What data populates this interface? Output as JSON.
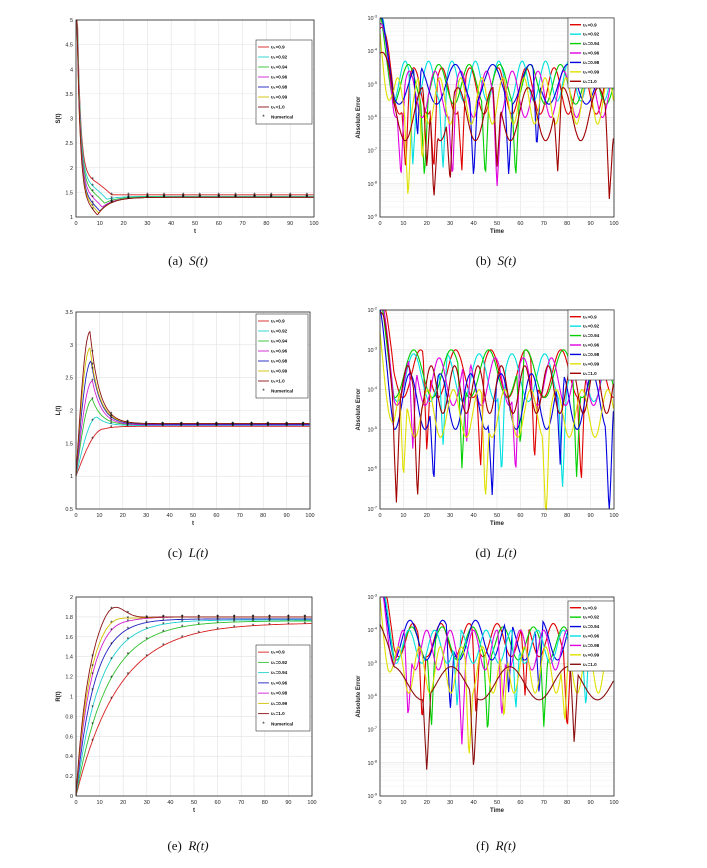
{
  "captions": [
    {
      "tag": "(a)",
      "sym": "S",
      "arg": "(t)"
    },
    {
      "tag": "(b)",
      "sym": "S",
      "arg": "(t)"
    },
    {
      "tag": "(c)",
      "sym": "L",
      "arg": "(t)"
    },
    {
      "tag": "(d)",
      "sym": "L",
      "arg": "(t)"
    },
    {
      "tag": "(e)",
      "sym": "R",
      "arg": "(t)"
    },
    {
      "tag": "(f)",
      "sym": "R",
      "arg": "(t)"
    }
  ],
  "chart_data": [
    {
      "id": "a",
      "type": "line",
      "xlabel": "t",
      "ylabel": "S(t)",
      "xlim": [
        0,
        100
      ],
      "ylim": [
        1,
        5
      ],
      "xticks": [
        0,
        10,
        20,
        30,
        40,
        50,
        60,
        70,
        80,
        90,
        100
      ],
      "yticks": [
        1,
        1.5,
        2,
        2.5,
        3,
        3.5,
        4,
        4.5,
        5
      ],
      "grid": true,
      "legend_position": "top-right",
      "numerical_markers": true,
      "series": [
        {
          "name": "υ₁=0.9",
          "color": "#d62020",
          "y0": 5,
          "settle": 1.45,
          "min": 1.45,
          "tmin": 15,
          "early": 1.9
        },
        {
          "name": "υ₁=0.92",
          "color": "#20d0d0",
          "y0": 5,
          "settle": 1.42,
          "min": 1.36,
          "tmin": 13,
          "early": 1.8
        },
        {
          "name": "υ₁=0.94",
          "color": "#30c030",
          "y0": 5,
          "settle": 1.41,
          "min": 1.28,
          "tmin": 12,
          "early": 1.7
        },
        {
          "name": "υ₁=0.96",
          "color": "#d020d0",
          "y0": 5,
          "settle": 1.4,
          "min": 1.2,
          "tmin": 11,
          "early": 1.6
        },
        {
          "name": "υ₁=0.98",
          "color": "#2020c0",
          "y0": 5,
          "settle": 1.4,
          "min": 1.12,
          "tmin": 10,
          "early": 1.5
        },
        {
          "name": "υ₁=0.99",
          "color": "#d0c000",
          "y0": 5,
          "settle": 1.4,
          "min": 1.08,
          "tmin": 9.5,
          "early": 1.45
        },
        {
          "name": "υ₁=1.0",
          "color": "#8b1010",
          "y0": 5,
          "settle": 1.4,
          "min": 1.04,
          "tmin": 9,
          "early": 1.4
        }
      ],
      "numerical_label": "Numerical",
      "numerical_t": [
        7,
        15,
        22,
        30,
        37,
        45,
        52,
        60,
        67,
        75,
        82,
        90,
        97
      ]
    },
    {
      "id": "c",
      "type": "line",
      "xlabel": "t",
      "ylabel": "L(t)",
      "xlim": [
        0,
        100
      ],
      "ylim": [
        0.5,
        3.5
      ],
      "xticks": [
        0,
        10,
        20,
        30,
        40,
        50,
        60,
        70,
        80,
        90,
        100
      ],
      "yticks": [
        0.5,
        1,
        1.5,
        2,
        2.5,
        3,
        3.5
      ],
      "grid": true,
      "legend_position": "top-right",
      "numerical_markers": true,
      "series": [
        {
          "name": "υ₁=0.9",
          "color": "#d62020",
          "y0": 1,
          "peak": 1.72,
          "tpeak": 12,
          "settle": 1.76
        },
        {
          "name": "υ₁=0.92",
          "color": "#20d0d0",
          "y0": 1,
          "peak": 1.9,
          "tpeak": 9,
          "settle": 1.77
        },
        {
          "name": "υ₁=0.94",
          "color": "#30c030",
          "y0": 1,
          "peak": 2.17,
          "tpeak": 7,
          "settle": 1.78
        },
        {
          "name": "υ₁=0.96",
          "color": "#d020d0",
          "y0": 1,
          "peak": 2.45,
          "tpeak": 7,
          "settle": 1.78
        },
        {
          "name": "υ₁=0.98",
          "color": "#2020c0",
          "y0": 1,
          "peak": 2.75,
          "tpeak": 6.5,
          "settle": 1.79
        },
        {
          "name": "υ₁=0.99",
          "color": "#d0c000",
          "y0": 1,
          "peak": 2.95,
          "tpeak": 6,
          "settle": 1.8
        },
        {
          "name": "υ₁=1.0",
          "color": "#8b1010",
          "y0": 1,
          "peak": 3.2,
          "tpeak": 6,
          "settle": 1.8
        }
      ],
      "numerical_label": "Numerical",
      "numerical_t": [
        7,
        15,
        22,
        30,
        37,
        45,
        52,
        60,
        67,
        75,
        82,
        90,
        97
      ]
    },
    {
      "id": "e",
      "type": "line",
      "xlabel": "t",
      "ylabel": "R(t)",
      "xlim": [
        0,
        100
      ],
      "ylim": [
        0,
        2
      ],
      "xticks": [
        0,
        10,
        20,
        30,
        40,
        50,
        60,
        70,
        80,
        90,
        100
      ],
      "yticks": [
        0,
        0.2,
        0.4,
        0.6,
        0.8,
        1,
        1.2,
        1.4,
        1.6,
        1.8,
        2
      ],
      "grid": true,
      "legend_position": "center-right",
      "numerical_markers": true,
      "series": [
        {
          "name": "υ₁=0.9",
          "color": "#d62020",
          "final": 1.74,
          "rate": 0.055,
          "peak": 0
        },
        {
          "name": "υ₁=0.92",
          "color": "#30c030",
          "final": 1.76,
          "rate": 0.075,
          "peak": 0
        },
        {
          "name": "υ₁=0.94",
          "color": "#20d0d0",
          "final": 1.77,
          "rate": 0.1,
          "peak": 0
        },
        {
          "name": "υ₁=0.96",
          "color": "#2020c0",
          "final": 1.78,
          "rate": 0.13,
          "peak": 0
        },
        {
          "name": "υ₁=0.98",
          "color": "#d020d0",
          "final": 1.8,
          "rate": 0.16,
          "peak": 0.03
        },
        {
          "name": "υ₁=0.99",
          "color": "#d0c000",
          "final": 1.8,
          "rate": 0.18,
          "peak": 0.06
        },
        {
          "name": "υ₁=1.0",
          "color": "#8b1010",
          "final": 1.8,
          "rate": 0.2,
          "peak": 0.17
        }
      ],
      "numerical_label": "Numerical",
      "numerical_t": [
        7,
        15,
        22,
        30,
        37,
        45,
        52,
        60,
        67,
        75,
        82,
        90,
        97
      ]
    },
    {
      "id": "b",
      "type": "line",
      "xlabel": "Time",
      "ylabel": "Absolute Error",
      "xlim": [
        0,
        100
      ],
      "yscale": "log",
      "ylog": [
        -9,
        -3
      ],
      "xticks": [
        0,
        10,
        20,
        30,
        40,
        50,
        60,
        70,
        80,
        90,
        100
      ],
      "yticks_exp": [
        -9,
        -8,
        -7,
        -6,
        -5,
        -4,
        -3
      ],
      "grid": true,
      "legend_position": "top-right",
      "series": [
        {
          "name": "υ₁=0.9",
          "color": "#e00000",
          "level": -5.2,
          "amp": 0.7,
          "period": 12,
          "phase": 0.3,
          "dips": [
            11,
            23,
            35
          ]
        },
        {
          "name": "υ₁=0.92",
          "color": "#00e0e0",
          "level": -4.9,
          "amp": 0.6,
          "period": 10,
          "phase": 1.1,
          "dips": [
            14,
            27
          ]
        },
        {
          "name": "υ₁=0.94",
          "color": "#00d000",
          "level": -5.0,
          "amp": 0.6,
          "period": 13,
          "phase": 2.0,
          "dips": [
            19,
            45,
            58
          ]
        },
        {
          "name": "υ₁=0.96",
          "color": "#e000e0",
          "level": -5.3,
          "amp": 0.7,
          "period": 11,
          "phase": 0.7,
          "dips": [
            9,
            31,
            50
          ]
        },
        {
          "name": "υ₁=0.98",
          "color": "#0000e0",
          "level": -5.0,
          "amp": 0.6,
          "period": 16,
          "phase": 1.5,
          "dips": [
            16,
            40,
            55,
            67
          ]
        },
        {
          "name": "υ₁=0.99",
          "color": "#e0e000",
          "level": -5.5,
          "amp": 0.7,
          "period": 9,
          "phase": 2.6,
          "dips": [
            12,
            18
          ]
        },
        {
          "name": "υ₁=1.0",
          "color": "#a00000",
          "level": -5.9,
          "amp": 0.8,
          "period": 15,
          "phase": 0.2,
          "dips": [
            20,
            23,
            30,
            50,
            76,
            98
          ]
        }
      ]
    },
    {
      "id": "d",
      "type": "line",
      "xlabel": "Time",
      "ylabel": "Absolute Error",
      "xlim": [
        0,
        100
      ],
      "yscale": "log",
      "ylog": [
        -7,
        -2
      ],
      "xticks": [
        0,
        10,
        20,
        30,
        40,
        50,
        60,
        70,
        80,
        90,
        100
      ],
      "yticks_exp": [
        -7,
        -6,
        -5,
        -4,
        -3,
        -2
      ],
      "grid": true,
      "legend_position": "top-right",
      "series": [
        {
          "name": "υ₁=0.9",
          "color": "#e00000",
          "level": -3.6,
          "amp": 0.6,
          "period": 15,
          "phase": 0.6,
          "dips": [
            20,
            43,
            66,
            86
          ]
        },
        {
          "name": "υ₁=0.92",
          "color": "#00e0e0",
          "level": -3.7,
          "amp": 0.6,
          "period": 14,
          "phase": 1.4,
          "dips": [
            27,
            52,
            78
          ]
        },
        {
          "name": "υ₁=0.94",
          "color": "#00d000",
          "level": -3.6,
          "amp": 0.6,
          "period": 16,
          "phase": 2.2,
          "dips": [
            35,
            60,
            84
          ]
        },
        {
          "name": "υ₁=0.96",
          "color": "#e000e0",
          "level": -3.8,
          "amp": 0.6,
          "period": 12,
          "phase": 0.9,
          "dips": [
            14,
            37,
            58
          ]
        },
        {
          "name": "υ₁=0.98",
          "color": "#0000e0",
          "level": -4.3,
          "amp": 0.7,
          "period": 13,
          "phase": 1.7,
          "dips": [
            23,
            48,
            77,
            98
          ]
        },
        {
          "name": "υ₁=0.99",
          "color": "#e0e000",
          "level": -4.6,
          "amp": 0.6,
          "period": 11,
          "phase": 2.5,
          "dips": [
            10,
            45,
            71
          ]
        },
        {
          "name": "υ₁=1.0",
          "color": "#a00000",
          "level": -4.0,
          "amp": 0.6,
          "period": 10,
          "phase": 0.4,
          "dips": [
            7,
            16
          ]
        }
      ]
    },
    {
      "id": "f",
      "type": "line",
      "xlabel": "Time",
      "ylabel": "Absolute Error",
      "xlim": [
        0,
        100
      ],
      "yscale": "log",
      "ylog": [
        -9,
        -3
      ],
      "xticks": [
        0,
        10,
        20,
        30,
        40,
        50,
        60,
        70,
        80,
        90,
        100
      ],
      "yticks_exp": [
        -9,
        -8,
        -7,
        -6,
        -5,
        -4,
        -3
      ],
      "grid": true,
      "legend_position": "top-right",
      "series": [
        {
          "name": "υ₁=0.9",
          "color": "#e00000",
          "level": -4.3,
          "amp": 0.5,
          "period": 12,
          "phase": 0.5,
          "dips": [
            18,
            41,
            62,
            80
          ]
        },
        {
          "name": "υ₁=0.92",
          "color": "#00d000",
          "level": -4.4,
          "amp": 0.5,
          "period": 13,
          "phase": 1.3,
          "dips": [
            22,
            46,
            70
          ]
        },
        {
          "name": "υ₁=0.94",
          "color": "#0000e0",
          "level": -4.3,
          "amp": 0.6,
          "period": 14,
          "phase": 2.1,
          "dips": [
            30,
            55,
            68
          ]
        },
        {
          "name": "υ₁=0.96",
          "color": "#00e0e0",
          "level": -4.5,
          "amp": 0.5,
          "period": 11,
          "phase": 0.8,
          "dips": [
            33,
            58,
            88
          ]
        },
        {
          "name": "υ₁=0.98",
          "color": "#e000e0",
          "level": -4.6,
          "amp": 0.6,
          "period": 10,
          "phase": 1.6,
          "dips": [
            12,
            35,
            52
          ]
        },
        {
          "name": "υ₁=0.99",
          "color": "#e0e000",
          "level": -5.2,
          "amp": 0.7,
          "period": 9,
          "phase": 2.4,
          "dips": [
            38,
            53,
            79
          ]
        },
        {
          "name": "υ₁=1.0",
          "color": "#8b1010",
          "level": -5.6,
          "amp": 0.5,
          "period": 25,
          "phase": 0.2,
          "dips": [
            20,
            40,
            83
          ]
        }
      ]
    }
  ]
}
